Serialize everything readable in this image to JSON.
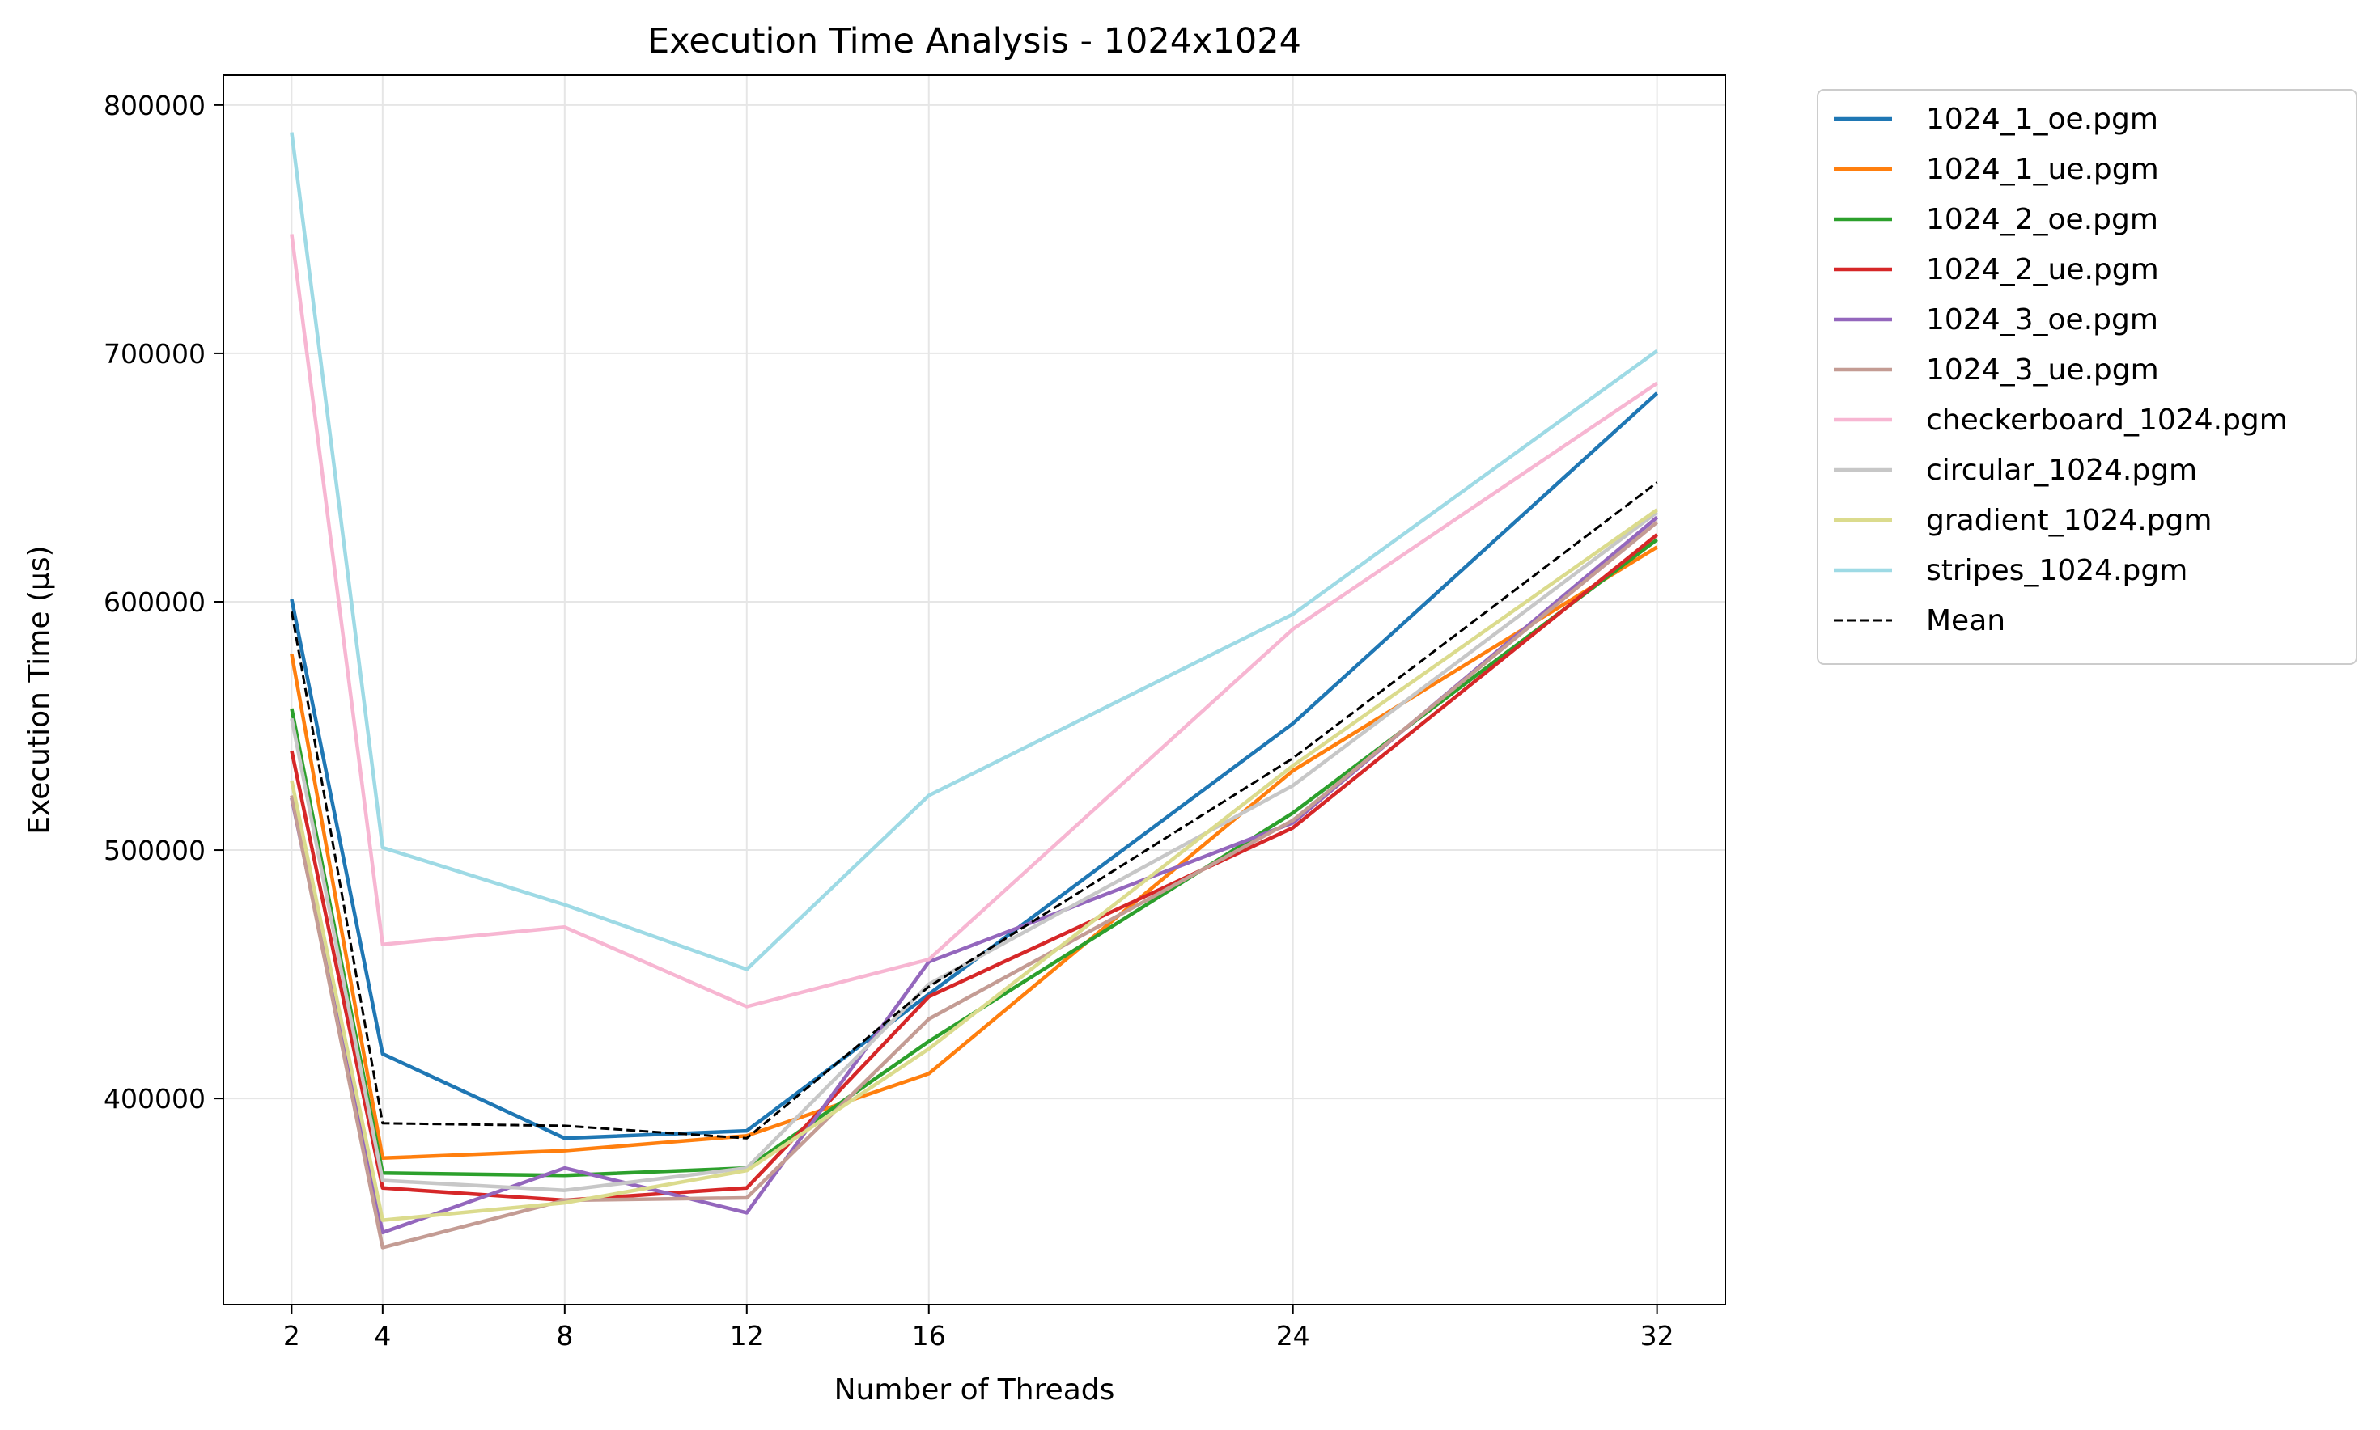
{
  "chart_data": {
    "type": "line",
    "title": "Execution Time Analysis - 1024x1024",
    "xlabel": "Number of Threads",
    "ylabel": "Execution Time (µs)",
    "x": [
      2,
      4,
      8,
      12,
      16,
      24,
      32
    ],
    "x_ticks": [
      "2",
      "4",
      "8",
      "12",
      "16",
      "24",
      "32"
    ],
    "y_ticks": [
      400000,
      500000,
      600000,
      700000,
      800000
    ],
    "y_tick_labels": [
      "400000",
      "500000",
      "600000",
      "700000",
      "800000"
    ],
    "xlim": [
      0.5,
      33.5
    ],
    "ylim": [
      317000,
      812000
    ],
    "grid": true,
    "legend_position": "outside-right-top",
    "series": [
      {
        "name": "1024_1_oe.pgm",
        "color": "#1f77b4",
        "dash": false,
        "values": [
          601000,
          418000,
          384000,
          387000,
          442000,
          551000,
          684000
        ]
      },
      {
        "name": "1024_1_ue.pgm",
        "color": "#ff7f0e",
        "dash": false,
        "values": [
          579000,
          376000,
          379000,
          385000,
          410000,
          532000,
          622000
        ]
      },
      {
        "name": "1024_2_oe.pgm",
        "color": "#2ca02c",
        "dash": false,
        "values": [
          557000,
          370000,
          369000,
          372000,
          423000,
          515000,
          625000
        ]
      },
      {
        "name": "1024_2_ue.pgm",
        "color": "#d62728",
        "dash": false,
        "values": [
          540000,
          364000,
          359000,
          364000,
          441000,
          509000,
          627000
        ]
      },
      {
        "name": "1024_3_oe.pgm",
        "color": "#9467bd",
        "dash": false,
        "values": [
          521000,
          346000,
          372000,
          354000,
          455000,
          511000,
          634000
        ]
      },
      {
        "name": "1024_3_ue.pgm",
        "color": "#c49c94",
        "dash": false,
        "values": [
          522000,
          340000,
          359000,
          360000,
          432000,
          512000,
          632000
        ]
      },
      {
        "name": "checkerboard_1024.pgm",
        "color": "#f7b6d2",
        "dash": false,
        "values": [
          748000,
          462000,
          469000,
          437000,
          456000,
          589000,
          688000
        ]
      },
      {
        "name": "circular_1024.pgm",
        "color": "#c7c7c7",
        "dash": false,
        "values": [
          553000,
          367000,
          363000,
          372000,
          446000,
          526000,
          636000
        ]
      },
      {
        "name": "gradient_1024.pgm",
        "color": "#dbdb8d",
        "dash": false,
        "values": [
          528000,
          351000,
          358000,
          371000,
          420000,
          534000,
          637000
        ]
      },
      {
        "name": "stripes_1024.pgm",
        "color": "#9edae5",
        "dash": false,
        "values": [
          789000,
          501000,
          478000,
          452000,
          522000,
          595000,
          701000
        ]
      },
      {
        "name": "Mean",
        "color": "#000000",
        "dash": true,
        "values": [
          596000,
          390000,
          389000,
          384000,
          445000,
          537000,
          648000
        ]
      }
    ]
  }
}
